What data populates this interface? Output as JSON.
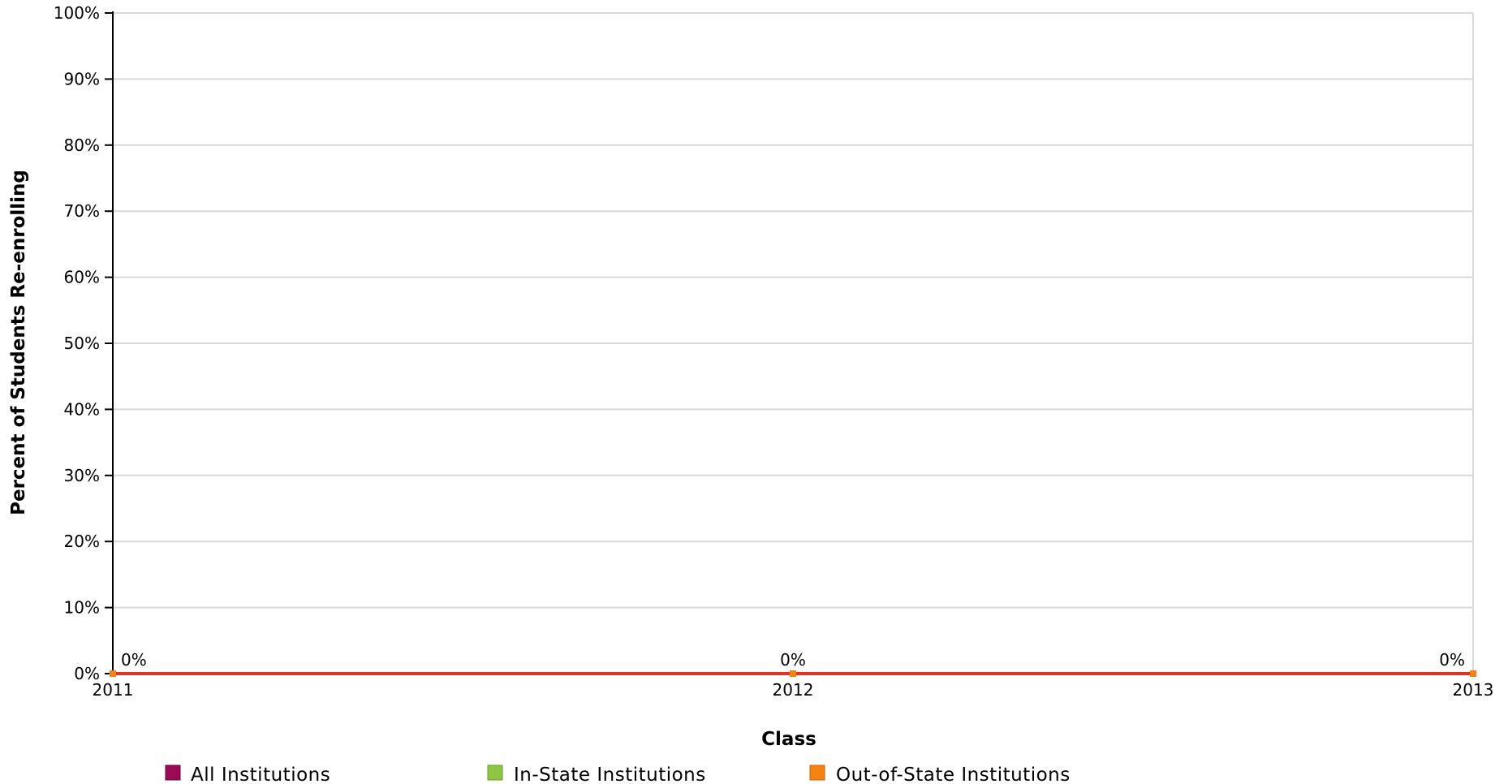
{
  "chart_data": {
    "type": "line",
    "title": "",
    "xlabel": "Class",
    "ylabel": "Percent of Students Re-enrolling",
    "x": [
      "2011",
      "2012",
      "2013"
    ],
    "ylim": [
      0,
      100
    ],
    "y_ticks": [
      "0%",
      "10%",
      "20%",
      "30%",
      "40%",
      "50%",
      "60%",
      "70%",
      "80%",
      "90%",
      "100%"
    ],
    "grid": true,
    "legend_position": "bottom",
    "series": [
      {
        "name": "All Institutions",
        "color": "#9b0a54",
        "values": [
          0,
          0,
          0
        ]
      },
      {
        "name": "In-State Institutions",
        "color": "#8dc641",
        "values": [
          0,
          0,
          0
        ]
      },
      {
        "name": "Out-of-State Institutions",
        "color": "#f7820f",
        "values": [
          0,
          0,
          0
        ]
      }
    ],
    "data_labels": [
      "0%",
      "0%",
      "0%"
    ],
    "line_color": "#e8311e"
  }
}
